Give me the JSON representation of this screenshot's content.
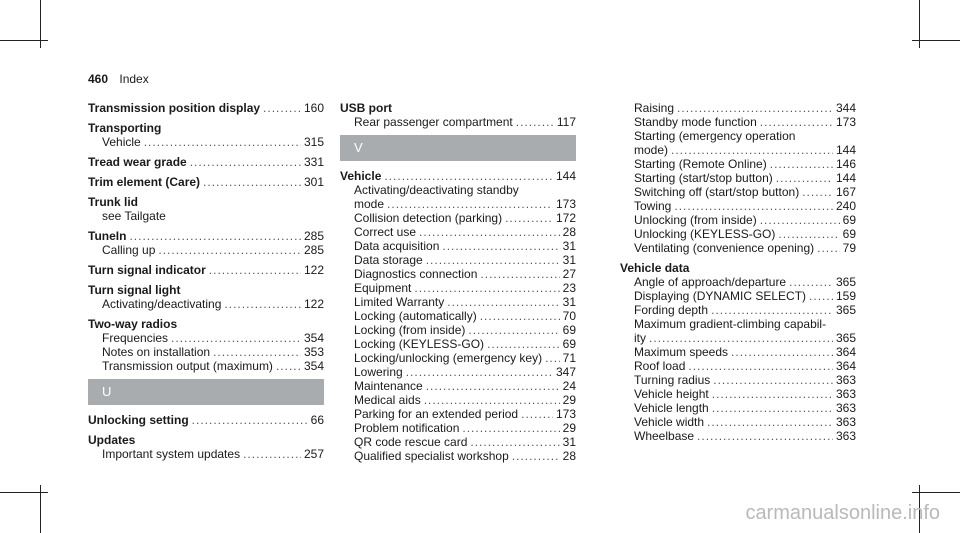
{
  "header": {
    "page_number": "460",
    "section": "Index"
  },
  "columns": [
    [
      {
        "kind": "entry",
        "bold": true,
        "text": "Transmission position display",
        "page": "160"
      },
      {
        "kind": "entry",
        "bold": true,
        "text": "Transporting",
        "page": ""
      },
      {
        "kind": "sub",
        "text": "Vehicle",
        "page": "315"
      },
      {
        "kind": "entry",
        "bold": true,
        "text": "Tread wear grade",
        "page": "331"
      },
      {
        "kind": "entry",
        "bold": true,
        "text": "Trim element (Care)",
        "page": "301"
      },
      {
        "kind": "entry",
        "bold": true,
        "text": "Trunk lid",
        "page": ""
      },
      {
        "kind": "subplain",
        "text": "see Tailgate",
        "page": ""
      },
      {
        "kind": "entry",
        "bold": true,
        "text": "TuneIn",
        "page": "285"
      },
      {
        "kind": "sub",
        "text": "Calling up",
        "page": "285"
      },
      {
        "kind": "entry",
        "bold": true,
        "text": "Turn signal indicator",
        "page": "122"
      },
      {
        "kind": "entry",
        "bold": true,
        "text": "Turn signal light",
        "page": ""
      },
      {
        "kind": "sub",
        "text": "Activating/deactivating",
        "page": "122"
      },
      {
        "kind": "entry",
        "bold": true,
        "text": "Two-way radios",
        "page": ""
      },
      {
        "kind": "sub",
        "text": "Frequencies",
        "page": "354"
      },
      {
        "kind": "sub",
        "text": "Notes on installation",
        "page": "353"
      },
      {
        "kind": "sub",
        "text": "Transmission output (maximum)",
        "page": "354"
      },
      {
        "kind": "banner",
        "text": "U"
      },
      {
        "kind": "entry",
        "bold": true,
        "text": "Unlocking setting",
        "page": "66"
      },
      {
        "kind": "entry",
        "bold": true,
        "text": "Updates",
        "page": ""
      },
      {
        "kind": "sub",
        "text": "Important system updates",
        "page": "257"
      }
    ],
    [
      {
        "kind": "entry",
        "bold": true,
        "text": "USB port",
        "page": ""
      },
      {
        "kind": "sub",
        "text": "Rear passenger compartment",
        "page": "117"
      },
      {
        "kind": "banner",
        "text": "V"
      },
      {
        "kind": "entry",
        "bold": true,
        "text": "Vehicle",
        "page": "144"
      },
      {
        "kind": "subplain",
        "text": "Activating/deactivating standby",
        "page": ""
      },
      {
        "kind": "sub",
        "text": "mode",
        "page": "173"
      },
      {
        "kind": "sub",
        "text": "Collision detection (parking)",
        "page": "172"
      },
      {
        "kind": "sub",
        "text": "Correct use",
        "page": "28"
      },
      {
        "kind": "sub",
        "text": "Data acquisition",
        "page": "31"
      },
      {
        "kind": "sub",
        "text": "Data storage",
        "page": "31"
      },
      {
        "kind": "sub",
        "text": "Diagnostics connection",
        "page": "27"
      },
      {
        "kind": "sub",
        "text": "Equipment",
        "page": "23"
      },
      {
        "kind": "sub",
        "text": "Limited Warranty",
        "page": "31"
      },
      {
        "kind": "sub",
        "text": "Locking (automatically)",
        "page": "70"
      },
      {
        "kind": "sub",
        "text": "Locking (from inside)",
        "page": "69"
      },
      {
        "kind": "sub",
        "text": "Locking (KEYLESS-GO)",
        "page": "69"
      },
      {
        "kind": "sub",
        "text": "Locking/unlocking (emergency key)",
        "page": "71"
      },
      {
        "kind": "sub",
        "text": "Lowering",
        "page": "347"
      },
      {
        "kind": "sub",
        "text": "Maintenance",
        "page": "24"
      },
      {
        "kind": "sub",
        "text": "Medical aids",
        "page": "29"
      },
      {
        "kind": "sub",
        "text": "Parking for an extended period",
        "page": "173"
      },
      {
        "kind": "sub",
        "text": "Problem notification",
        "page": "29"
      },
      {
        "kind": "sub",
        "text": "QR code rescue card",
        "page": "31"
      },
      {
        "kind": "sub",
        "text": "Qualified specialist workshop",
        "page": "28"
      }
    ],
    [
      {
        "kind": "sub",
        "text": "Raising",
        "page": "344"
      },
      {
        "kind": "sub",
        "text": "Standby mode function",
        "page": "173"
      },
      {
        "kind": "subplain",
        "text": "Starting (emergency operation",
        "page": ""
      },
      {
        "kind": "sub",
        "text": "mode)",
        "page": "144"
      },
      {
        "kind": "sub",
        "text": "Starting (Remote Online)",
        "page": "146"
      },
      {
        "kind": "sub",
        "text": "Starting (start/stop button)",
        "page": "144"
      },
      {
        "kind": "sub",
        "text": "Switching off (start/stop button)",
        "page": "167"
      },
      {
        "kind": "sub",
        "text": "Towing",
        "page": "240"
      },
      {
        "kind": "sub",
        "text": "Unlocking (from inside)",
        "page": "69"
      },
      {
        "kind": "sub",
        "text": "Unlocking (KEYLESS-GO)",
        "page": "69"
      },
      {
        "kind": "sub",
        "text": "Ventilating (convenience opening)",
        "page": "79"
      },
      {
        "kind": "entry",
        "bold": true,
        "text": "Vehicle data",
        "page": ""
      },
      {
        "kind": "sub",
        "text": "Angle of approach/departure",
        "page": "365"
      },
      {
        "kind": "sub",
        "text": "Displaying (DYNAMIC SELECT)",
        "page": "159"
      },
      {
        "kind": "sub",
        "text": "Fording depth",
        "page": "365"
      },
      {
        "kind": "subplain",
        "text": "Maximum gradient-climbing capabil-",
        "page": ""
      },
      {
        "kind": "sub",
        "text": "ity",
        "page": "365"
      },
      {
        "kind": "sub",
        "text": "Maximum speeds",
        "page": "364"
      },
      {
        "kind": "sub",
        "text": "Roof load",
        "page": "364"
      },
      {
        "kind": "sub",
        "text": "Turning radius",
        "page": "363"
      },
      {
        "kind": "sub",
        "text": "Vehicle height",
        "page": "363"
      },
      {
        "kind": "sub",
        "text": "Vehicle length",
        "page": "363"
      },
      {
        "kind": "sub",
        "text": "Vehicle width",
        "page": "363"
      },
      {
        "kind": "sub",
        "text": "Wheelbase",
        "page": "363"
      }
    ]
  ],
  "watermark": "carmanualsonline.info"
}
